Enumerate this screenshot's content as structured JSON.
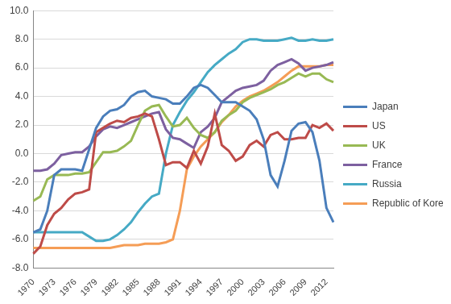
{
  "chart_data": {
    "type": "line",
    "categories": [
      "1970",
      null,
      null,
      "1973",
      null,
      null,
      "1976",
      null,
      null,
      "1979",
      null,
      null,
      "1982",
      null,
      null,
      "1985",
      null,
      null,
      "1988",
      null,
      null,
      "1991",
      null,
      null,
      "1994",
      null,
      null,
      "1997",
      null,
      null,
      "2000",
      null,
      null,
      "2003",
      null,
      null,
      "2006",
      null,
      null,
      "2009",
      null,
      null,
      "2012",
      null
    ],
    "series": [
      {
        "name": "Japan",
        "color": "#4a7ebb",
        "values": [
          -5.5,
          -5.3,
          -4.0,
          -1.5,
          -1.1,
          -1.1,
          -1.1,
          -1.2,
          0.3,
          1.8,
          2.6,
          3.0,
          3.1,
          3.4,
          4.0,
          4.3,
          4.4,
          4.0,
          3.9,
          3.8,
          3.5,
          3.5,
          4.0,
          4.6,
          4.8,
          4.6,
          4.1,
          3.6,
          3.6,
          3.6,
          3.3,
          3.0,
          2.4,
          1.0,
          -1.5,
          -2.3,
          -0.5,
          1.6,
          2.1,
          2.2,
          1.5,
          -0.5,
          -3.8,
          -4.8
        ]
      },
      {
        "name": "US",
        "color": "#be4b48",
        "values": [
          -7.0,
          -6.5,
          -5.0,
          -4.2,
          -3.8,
          -3.2,
          -2.8,
          -2.7,
          -2.5,
          1.5,
          1.8,
          2.1,
          2.3,
          2.2,
          2.5,
          2.6,
          2.8,
          2.6,
          1.0,
          -0.8,
          -0.6,
          -0.6,
          -1.0,
          0.2,
          -0.7,
          0.5,
          2.8,
          0.6,
          0.2,
          -0.5,
          -0.2,
          0.6,
          0.9,
          0.5,
          1.3,
          1.5,
          1.0,
          1.0,
          1.1,
          1.1,
          2.0,
          1.8,
          2.1,
          1.6
        ]
      },
      {
        "name": "UK",
        "color": "#98b954",
        "values": [
          -3.3,
          -3.0,
          -1.8,
          -1.5,
          -1.5,
          -1.5,
          -1.4,
          -1.4,
          -1.3,
          -0.6,
          0.1,
          0.1,
          0.2,
          0.5,
          0.9,
          2.0,
          3.0,
          3.3,
          3.4,
          2.6,
          1.9,
          2.0,
          2.5,
          1.8,
          1.3,
          1.1,
          1.5,
          2.3,
          2.7,
          3.0,
          3.6,
          3.9,
          4.1,
          4.3,
          4.5,
          4.8,
          5.0,
          5.3,
          5.6,
          5.4,
          5.6,
          5.6,
          5.2,
          5.0
        ]
      },
      {
        "name": "France",
        "color": "#7d60a0",
        "values": [
          -1.2,
          -1.2,
          -1.1,
          -0.7,
          -0.1,
          0.0,
          0.1,
          0.1,
          0.5,
          1.2,
          1.7,
          1.9,
          1.8,
          2.0,
          2.2,
          2.4,
          2.6,
          2.8,
          2.9,
          1.7,
          1.1,
          1.0,
          0.7,
          0.4,
          1.5,
          1.9,
          2.5,
          3.6,
          4.0,
          4.4,
          4.6,
          4.7,
          4.8,
          5.1,
          5.8,
          6.2,
          6.4,
          6.6,
          6.3,
          5.8,
          6.0,
          6.1,
          6.2,
          6.4
        ]
      },
      {
        "name": "Russia",
        "color": "#46aac5",
        "values": [
          -5.5,
          -5.5,
          -5.5,
          -5.5,
          -5.5,
          -5.5,
          -5.5,
          -5.5,
          -5.8,
          -6.1,
          -6.1,
          -6.0,
          -5.7,
          -5.3,
          -4.8,
          -4.1,
          -3.5,
          -3.0,
          -2.8,
          0.0,
          2.0,
          2.9,
          3.7,
          4.3,
          5.0,
          5.7,
          6.2,
          6.6,
          7.0,
          7.3,
          7.8,
          8.0,
          8.0,
          7.9,
          7.9,
          7.9,
          8.0,
          8.1,
          7.9,
          7.9,
          8.0,
          7.9,
          7.9,
          8.0
        ]
      },
      {
        "name": "Republic of Korea",
        "color": "#f59d56",
        "values": [
          -6.6,
          -6.6,
          -6.6,
          -6.6,
          -6.6,
          -6.6,
          -6.6,
          -6.6,
          -6.6,
          -6.6,
          -6.6,
          -6.6,
          -6.5,
          -6.4,
          -6.4,
          -6.4,
          -6.3,
          -6.3,
          -6.3,
          -6.2,
          -6.0,
          -4.0,
          -1.1,
          -0.2,
          0.5,
          1.0,
          1.5,
          2.2,
          2.7,
          3.3,
          3.7,
          4.0,
          4.2,
          4.4,
          4.7,
          5.0,
          5.4,
          5.8,
          6.1,
          6.1,
          6.1,
          6.1,
          6.2,
          6.2
        ]
      }
    ],
    "ylim": [
      -8,
      10
    ],
    "yticks": [
      {
        "value": -8,
        "label": "-8.0"
      },
      {
        "value": -6,
        "label": "-6.0"
      },
      {
        "value": -4,
        "label": "-4.0"
      },
      {
        "value": -2,
        "label": "-2.0"
      },
      {
        "value": 0,
        "label": "0.0"
      },
      {
        "value": 2,
        "label": "2.0"
      },
      {
        "value": 4,
        "label": "4.0"
      },
      {
        "value": 6,
        "label": "6.0"
      },
      {
        "value": 8,
        "label": "8.0"
      },
      {
        "value": 10,
        "label": "10.0"
      }
    ],
    "grid": "y",
    "legend": "right"
  }
}
